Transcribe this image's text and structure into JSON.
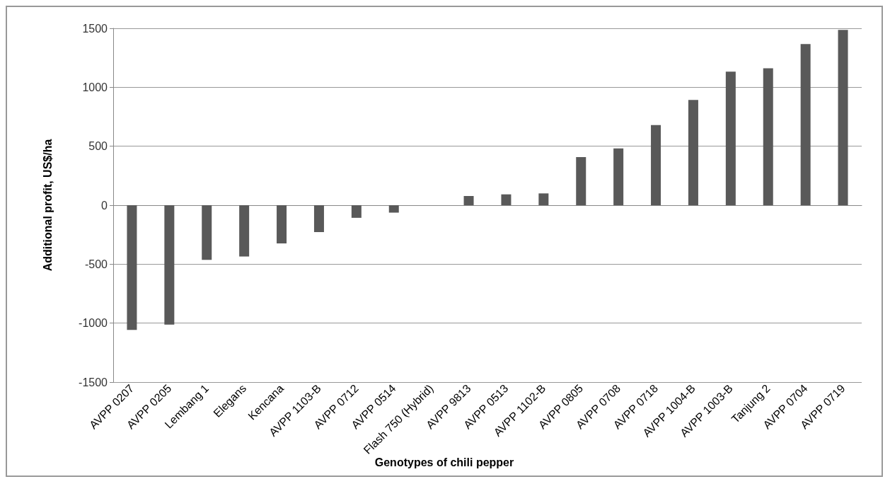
{
  "chart_data": {
    "type": "bar",
    "xlabel": "Genotypes of chili pepper",
    "ylabel": "Additional profit, US$/ha",
    "categories": [
      "AVPP 0207",
      "AVPP 0205",
      "Lembang 1",
      "Elegans",
      "Kencana",
      "AVPP 1103-B",
      "AVPP 0712",
      "AVPP 0514",
      "Flash 750 (Hybrid)",
      "AVPP 9813",
      "AVPP 0513",
      "AVPP 1102-B",
      "AVPP 0805",
      "AVPP 0708",
      "AVPP 0718",
      "AVPP 1004-B",
      "AVPP 1003-B",
      "Tanjung 2",
      "AVPP 0704",
      "AVPP 0719"
    ],
    "values": [
      -1057,
      -1013,
      -463,
      -435,
      -324,
      -228,
      -107,
      -63,
      0,
      78,
      92,
      100,
      408,
      482,
      679,
      892,
      1133,
      1161,
      1366,
      1486
    ],
    "color": "#595959",
    "ylim": [
      -1500,
      1500
    ],
    "yticks": [
      -1500,
      -1000,
      -500,
      0,
      500,
      1000,
      1500
    ],
    "grid": "y"
  }
}
